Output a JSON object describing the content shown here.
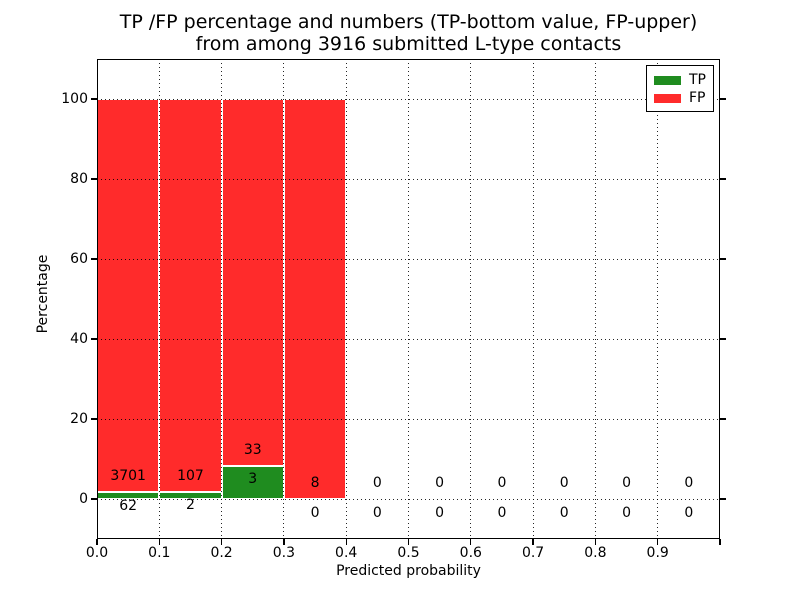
{
  "title": {
    "line1": "TP /FP percentage and numbers (TP-bottom value, FP-upper)",
    "line2": "from among 3916 submitted L-type contacts"
  },
  "axes": {
    "xlabel": "Predicted probability",
    "ylabel": "Percentage",
    "x_tick_labels": [
      "0.0",
      "0.1",
      "0.2",
      "0.3",
      "0.4",
      "0.5",
      "0.6",
      "0.7",
      "0.8",
      "0.9"
    ],
    "y_tick_labels": [
      "0",
      "20",
      "40",
      "60",
      "80",
      "100"
    ]
  },
  "legend": {
    "entries": [
      {
        "label": "TP",
        "color": "#1f8c1f"
      },
      {
        "label": "FP",
        "color": "#ff2b2b"
      }
    ]
  },
  "colors": {
    "tp": "#1f8c1f",
    "fp": "#ff2b2b",
    "bar_edge": "#ffffff",
    "grid": "#000000",
    "frame": "#000000",
    "background": "#ffffff"
  },
  "chart_data": {
    "type": "bar",
    "stacked": true,
    "title": "TP /FP percentage and numbers (TP-bottom value, FP-upper) from among 3916 submitted L-type contacts",
    "xlabel": "Predicted probability",
    "ylabel": "Percentage",
    "total_contacts": 3916,
    "bin_edges": [
      0.0,
      0.1,
      0.2,
      0.3,
      0.4,
      0.5,
      0.6,
      0.7,
      0.8,
      0.9,
      1.0
    ],
    "series": [
      {
        "name": "TP",
        "color": "#1f8c1f",
        "counts": [
          62,
          2,
          3,
          0,
          0,
          0,
          0,
          0,
          0,
          0
        ],
        "percent": [
          1.65,
          1.83,
          8.33,
          0,
          0,
          0,
          0,
          0,
          0,
          0
        ]
      },
      {
        "name": "FP",
        "color": "#ff2b2b",
        "counts": [
          3701,
          107,
          33,
          8,
          0,
          0,
          0,
          0,
          0,
          0
        ],
        "percent": [
          98.35,
          98.17,
          91.67,
          100,
          0,
          0,
          0,
          0,
          0,
          0
        ]
      }
    ],
    "bar_labels_note": "TP count shown below bar bottom, FP count shown above TP segment",
    "xlim": [
      0.0,
      1.0
    ],
    "ylim": [
      -10,
      110
    ],
    "x_ticks": [
      0.0,
      0.1,
      0.2,
      0.3,
      0.4,
      0.5,
      0.6,
      0.7,
      0.8,
      0.9
    ],
    "y_ticks": [
      0,
      20,
      40,
      60,
      80,
      100
    ],
    "grid": true,
    "grid_style": "dotted",
    "legend_position": "upper right"
  }
}
